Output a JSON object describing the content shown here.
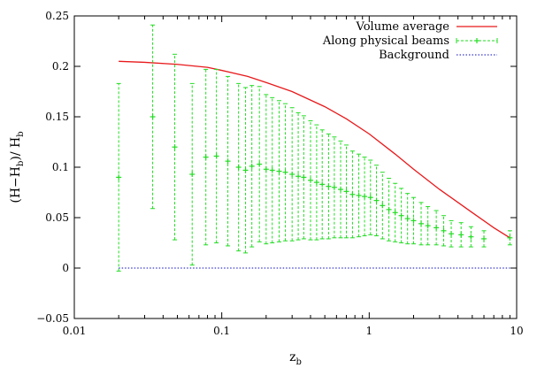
{
  "chart_data": {
    "type": "line",
    "title": "",
    "xlabel": "z",
    "xlabel_sub": "b",
    "ylabel_parts": [
      "(H−H",
      "b",
      ")/ H",
      "b"
    ],
    "xscale": "log",
    "xlim": [
      0.01,
      10
    ],
    "ylim": [
      -0.05,
      0.25
    ],
    "grid": false,
    "legend_position": "top-right",
    "x_ticks": [
      {
        "value": 0.01,
        "label": "0.01"
      },
      {
        "value": 0.1,
        "label": "0.1"
      },
      {
        "value": 1,
        "label": "1"
      },
      {
        "value": 10,
        "label": "10"
      }
    ],
    "y_ticks": [
      {
        "value": -0.05,
        "label": "−0.05"
      },
      {
        "value": 0,
        "label": "0"
      },
      {
        "value": 0.05,
        "label": "0.05"
      },
      {
        "value": 0.1,
        "label": "0.1"
      },
      {
        "value": 0.15,
        "label": "0.15"
      },
      {
        "value": 0.2,
        "label": "0.2"
      },
      {
        "value": 0.25,
        "label": "0.25"
      }
    ],
    "series": [
      {
        "name": "Volume average",
        "color": "#e8191b",
        "style": "line",
        "x": [
          0.02,
          0.03,
          0.05,
          0.08,
          0.1,
          0.15,
          0.2,
          0.3,
          0.5,
          0.7,
          1.0,
          1.5,
          2.0,
          3.0,
          5.0,
          7.0,
          9.0
        ],
        "y": [
          0.205,
          0.204,
          0.202,
          0.199,
          0.196,
          0.19,
          0.184,
          0.175,
          0.16,
          0.148,
          0.133,
          0.113,
          0.098,
          0.078,
          0.055,
          0.04,
          0.03
        ]
      },
      {
        "name": "Along physical beams",
        "color": "#22dd22",
        "style": "errorbar",
        "x": [
          0.02,
          0.034,
          0.048,
          0.063,
          0.078,
          0.092,
          0.11,
          0.13,
          0.145,
          0.16,
          0.18,
          0.2,
          0.22,
          0.245,
          0.27,
          0.3,
          0.33,
          0.36,
          0.4,
          0.44,
          0.48,
          0.53,
          0.58,
          0.64,
          0.7,
          0.77,
          0.85,
          0.93,
          1.02,
          1.12,
          1.23,
          1.36,
          1.5,
          1.65,
          1.82,
          2.0,
          2.25,
          2.5,
          2.85,
          3.2,
          3.6,
          4.2,
          4.9,
          6.0,
          9.0
        ],
        "y": [
          0.09,
          0.15,
          0.12,
          0.093,
          0.11,
          0.111,
          0.106,
          0.1,
          0.097,
          0.101,
          0.103,
          0.098,
          0.097,
          0.096,
          0.095,
          0.093,
          0.091,
          0.09,
          0.087,
          0.085,
          0.083,
          0.081,
          0.08,
          0.078,
          0.076,
          0.073,
          0.072,
          0.071,
          0.07,
          0.067,
          0.062,
          0.058,
          0.055,
          0.052,
          0.049,
          0.047,
          0.044,
          0.042,
          0.04,
          0.037,
          0.034,
          0.033,
          0.031,
          0.029,
          0.03
        ],
        "yerr": [
          0.093,
          0.091,
          0.092,
          0.09,
          0.087,
          0.086,
          0.084,
          0.083,
          0.082,
          0.08,
          0.077,
          0.074,
          0.072,
          0.07,
          0.068,
          0.066,
          0.063,
          0.061,
          0.059,
          0.057,
          0.054,
          0.052,
          0.05,
          0.048,
          0.046,
          0.043,
          0.041,
          0.039,
          0.037,
          0.035,
          0.033,
          0.031,
          0.029,
          0.027,
          0.025,
          0.023,
          0.021,
          0.019,
          0.017,
          0.015,
          0.013,
          0.012,
          0.01,
          0.008,
          0.007
        ]
      },
      {
        "name": "Background",
        "color": "#3b3bcc",
        "style": "dotted",
        "x": [
          0.02,
          9.0
        ],
        "y": [
          0,
          0
        ]
      }
    ]
  }
}
